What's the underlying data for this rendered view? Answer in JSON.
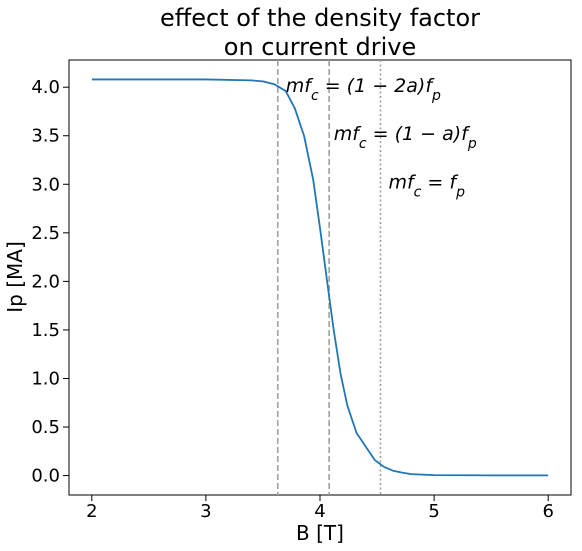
{
  "chart_data": {
    "type": "line",
    "title_lines": [
      "effect of the density factor",
      "on current drive"
    ],
    "xlabel": "B [T]",
    "ylabel": "Ip [MA]",
    "xlim": [
      1.8,
      6.2
    ],
    "ylim": [
      -0.2,
      4.28
    ],
    "xticks": [
      2,
      3,
      4,
      5,
      6
    ],
    "xtick_labels": [
      "2",
      "3",
      "4",
      "5",
      "6"
    ],
    "yticks": [
      0.0,
      0.5,
      1.0,
      1.5,
      2.0,
      2.5,
      3.0,
      3.5,
      4.0
    ],
    "ytick_labels": [
      "0.0",
      "0.5",
      "1.0",
      "1.5",
      "2.0",
      "2.5",
      "3.0",
      "3.5",
      "4.0"
    ],
    "grid": false,
    "series": [
      {
        "color": "#1f77b4",
        "x": [
          2.0,
          3.0,
          3.4,
          3.5,
          3.6,
          3.7,
          3.78,
          3.86,
          3.94,
          4.0,
          4.06,
          4.12,
          4.18,
          4.24,
          4.32,
          4.4,
          4.48,
          4.56,
          4.64,
          4.72,
          4.8,
          5.0,
          5.5,
          6.0
        ],
        "y": [
          4.08,
          4.08,
          4.07,
          4.06,
          4.03,
          3.96,
          3.78,
          3.5,
          3.05,
          2.55,
          2.02,
          1.5,
          1.05,
          0.72,
          0.44,
          0.3,
          0.16,
          0.09,
          0.05,
          0.03,
          0.015,
          0.005,
          0.002,
          0.002
        ]
      }
    ],
    "vlines": [
      {
        "x": 3.63,
        "style": "dashed",
        "color": "#a0a0a0",
        "label_before": "mf",
        "label_sub": "c",
        "label_after": " = (1 − 2a)f",
        "label_sub2": "p",
        "label_x": 3.7,
        "label_y": 4.02
      },
      {
        "x": 4.08,
        "style": "dashed",
        "color": "#a0a0a0",
        "label_before": "mf",
        "label_sub": "c",
        "label_after": " = (1 − a)f",
        "label_sub2": "p",
        "label_x": 4.12,
        "label_y": 3.53
      },
      {
        "x": 4.53,
        "style": "dotted",
        "color": "#a0a0a0",
        "label_before": "mf",
        "label_sub": "c",
        "label_after": " = f",
        "label_sub2": "p",
        "label_x": 4.6,
        "label_y": 3.03
      }
    ]
  }
}
